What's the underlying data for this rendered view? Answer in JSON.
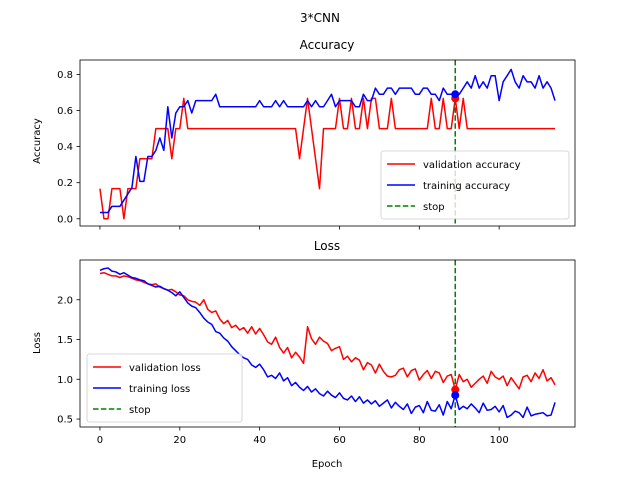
{
  "figure": {
    "suptitle": "3*CNN"
  },
  "chart_data": [
    {
      "type": "line",
      "title": "Accuracy",
      "xlabel": "",
      "ylabel": "Accuracy",
      "xlim": [
        -5,
        119
      ],
      "ylim": [
        -0.04,
        0.88
      ],
      "xticks": [
        0,
        20,
        40,
        60,
        80,
        100
      ],
      "yticks": [
        0.0,
        0.2,
        0.4,
        0.6,
        0.8
      ],
      "ytick_labels": [
        "0.0",
        "0.2",
        "0.4",
        "0.6",
        "0.8"
      ],
      "show_x_tick_labels": false,
      "grid": false,
      "legend_position": "lower-right",
      "stop_epoch": 89,
      "stop_points": [
        {
          "series": "validation accuracy",
          "x": 89,
          "y": 0.667
        },
        {
          "series": "training accuracy",
          "x": 89,
          "y": 0.69
        }
      ],
      "series": [
        {
          "name": "validation accuracy",
          "color": "#ff0000",
          "style": "solid",
          "values": [
            0.167,
            0.0,
            0.0,
            0.167,
            0.167,
            0.167,
            0.0,
            0.167,
            0.167,
            0.167,
            0.333,
            0.333,
            0.333,
            0.333,
            0.5,
            0.5,
            0.5,
            0.5,
            0.333,
            0.5,
            0.5,
            0.667,
            0.5,
            0.5,
            0.5,
            0.5,
            0.5,
            0.5,
            0.5,
            0.5,
            0.5,
            0.5,
            0.5,
            0.5,
            0.5,
            0.5,
            0.5,
            0.5,
            0.5,
            0.5,
            0.5,
            0.5,
            0.5,
            0.5,
            0.5,
            0.5,
            0.5,
            0.5,
            0.5,
            0.5,
            0.333,
            0.5,
            0.667,
            0.5,
            0.333,
            0.167,
            0.5,
            0.5,
            0.5,
            0.5,
            0.667,
            0.5,
            0.5,
            0.667,
            0.5,
            0.5,
            0.667,
            0.5,
            0.667,
            0.667,
            0.5,
            0.5,
            0.5,
            0.667,
            0.5,
            0.5,
            0.5,
            0.5,
            0.5,
            0.5,
            0.5,
            0.5,
            0.5,
            0.667,
            0.5,
            0.5,
            0.667,
            0.5,
            0.5,
            0.667,
            0.5,
            0.667,
            0.5,
            0.5,
            0.5,
            0.5,
            0.5,
            0.5,
            0.5,
            0.5,
            0.5,
            0.5,
            0.5,
            0.5,
            0.5,
            0.5,
            0.5,
            0.5,
            0.5,
            0.5,
            0.5,
            0.5,
            0.5,
            0.5,
            0.5
          ]
        },
        {
          "name": "training accuracy",
          "color": "#0000ff",
          "style": "solid",
          "values": [
            0.035,
            0.035,
            0.035,
            0.069,
            0.069,
            0.069,
            0.103,
            0.138,
            0.172,
            0.345,
            0.207,
            0.207,
            0.345,
            0.345,
            0.379,
            0.448,
            0.379,
            0.621,
            0.448,
            0.586,
            0.621,
            0.621,
            0.655,
            0.586,
            0.655,
            0.655,
            0.655,
            0.655,
            0.655,
            0.69,
            0.621,
            0.621,
            0.621,
            0.621,
            0.621,
            0.621,
            0.621,
            0.621,
            0.621,
            0.621,
            0.655,
            0.621,
            0.621,
            0.621,
            0.655,
            0.621,
            0.655,
            0.621,
            0.621,
            0.621,
            0.621,
            0.621,
            0.655,
            0.621,
            0.655,
            0.621,
            0.621,
            0.655,
            0.69,
            0.621,
            0.655,
            0.655,
            0.655,
            0.655,
            0.621,
            0.621,
            0.69,
            0.655,
            0.655,
            0.724,
            0.69,
            0.69,
            0.724,
            0.724,
            0.69,
            0.724,
            0.724,
            0.724,
            0.724,
            0.69,
            0.69,
            0.724,
            0.724,
            0.69,
            0.69,
            0.655,
            0.724,
            0.69,
            0.69,
            0.69,
            0.69,
            0.724,
            0.759,
            0.724,
            0.793,
            0.724,
            0.759,
            0.724,
            0.793,
            0.793,
            0.655,
            0.759,
            0.793,
            0.828,
            0.759,
            0.724,
            0.793,
            0.759,
            0.759,
            0.724,
            0.793,
            0.724,
            0.759,
            0.724,
            0.655
          ]
        },
        {
          "name": "stop",
          "color": "#008000",
          "style": "dashed",
          "x": 89
        }
      ]
    },
    {
      "type": "line",
      "title": "Loss",
      "xlabel": "Epoch",
      "ylabel": "Loss",
      "xlim": [
        -5,
        119
      ],
      "ylim": [
        0.4,
        2.5
      ],
      "xticks": [
        0,
        20,
        40,
        60,
        80,
        100
      ],
      "xtick_labels": [
        "0",
        "20",
        "40",
        "60",
        "80",
        "100"
      ],
      "yticks": [
        0.5,
        1.0,
        1.5,
        2.0
      ],
      "ytick_labels": [
        "0.5",
        "1.0",
        "1.5",
        "2.0"
      ],
      "show_x_tick_labels": true,
      "grid": false,
      "legend_position": "lower-left",
      "stop_epoch": 89,
      "stop_points": [
        {
          "series": "validation loss",
          "x": 89,
          "y": 0.87
        },
        {
          "series": "training loss",
          "x": 89,
          "y": 0.8
        }
      ],
      "series": [
        {
          "name": "validation loss",
          "color": "#ff0000",
          "style": "solid",
          "values": [
            2.33,
            2.34,
            2.32,
            2.3,
            2.3,
            2.28,
            2.3,
            2.29,
            2.27,
            2.25,
            2.24,
            2.22,
            2.2,
            2.19,
            2.2,
            2.16,
            2.14,
            2.12,
            2.13,
            2.1,
            2.06,
            2.05,
            2.0,
            1.98,
            1.97,
            1.93,
            2.0,
            1.88,
            1.84,
            1.86,
            1.76,
            1.7,
            1.74,
            1.65,
            1.68,
            1.62,
            1.65,
            1.58,
            1.66,
            1.57,
            1.64,
            1.56,
            1.47,
            1.44,
            1.53,
            1.4,
            1.33,
            1.4,
            1.27,
            1.34,
            1.28,
            1.2,
            1.66,
            1.51,
            1.44,
            1.53,
            1.48,
            1.45,
            1.36,
            1.39,
            1.41,
            1.25,
            1.29,
            1.22,
            1.27,
            1.24,
            1.12,
            1.21,
            1.18,
            1.08,
            1.19,
            1.1,
            1.04,
            1.03,
            1.05,
            1.12,
            1.14,
            1.03,
            1.11,
            1.13,
            0.99,
            1.06,
            1.11,
            1.01,
            1.1,
            1.08,
            0.96,
            1.04,
            1.06,
            0.87,
            1.06,
            0.97,
            1.0,
            0.9,
            0.95,
            1.0,
            1.04,
            0.95,
            1.1,
            1.03,
            1.0,
            1.04,
            0.92,
            1.02,
            0.95,
            0.88,
            1.03,
            1.05,
            0.97,
            1.08,
            1.01,
            1.12,
            0.98,
            1.02,
            0.93
          ]
        },
        {
          "name": "training loss",
          "color": "#0000ff",
          "style": "solid",
          "values": [
            2.37,
            2.39,
            2.4,
            2.36,
            2.35,
            2.32,
            2.34,
            2.31,
            2.28,
            2.27,
            2.25,
            2.24,
            2.2,
            2.18,
            2.16,
            2.17,
            2.14,
            2.12,
            2.09,
            2.05,
            2.1,
            2.03,
            1.96,
            1.92,
            1.9,
            1.84,
            1.77,
            1.72,
            1.69,
            1.6,
            1.58,
            1.52,
            1.48,
            1.41,
            1.36,
            1.31,
            1.27,
            1.25,
            1.18,
            1.15,
            1.19,
            1.12,
            1.03,
            1.05,
            1.01,
            1.08,
            0.98,
            1.02,
            0.92,
            0.96,
            0.9,
            0.86,
            0.91,
            0.84,
            0.88,
            0.82,
            0.79,
            0.85,
            0.8,
            0.77,
            0.83,
            0.76,
            0.74,
            0.79,
            0.72,
            0.78,
            0.7,
            0.74,
            0.69,
            0.73,
            0.66,
            0.7,
            0.74,
            0.64,
            0.71,
            0.66,
            0.62,
            0.69,
            0.57,
            0.65,
            0.67,
            0.58,
            0.72,
            0.61,
            0.6,
            0.68,
            0.55,
            0.72,
            0.63,
            0.8,
            0.62,
            0.66,
            0.63,
            0.69,
            0.64,
            0.58,
            0.7,
            0.61,
            0.62,
            0.66,
            0.59,
            0.67,
            0.52,
            0.55,
            0.6,
            0.58,
            0.52,
            0.65,
            0.54,
            0.56,
            0.57,
            0.58,
            0.54,
            0.55,
            0.71
          ]
        },
        {
          "name": "stop",
          "color": "#008000",
          "style": "dashed",
          "x": 89
        }
      ]
    }
  ]
}
